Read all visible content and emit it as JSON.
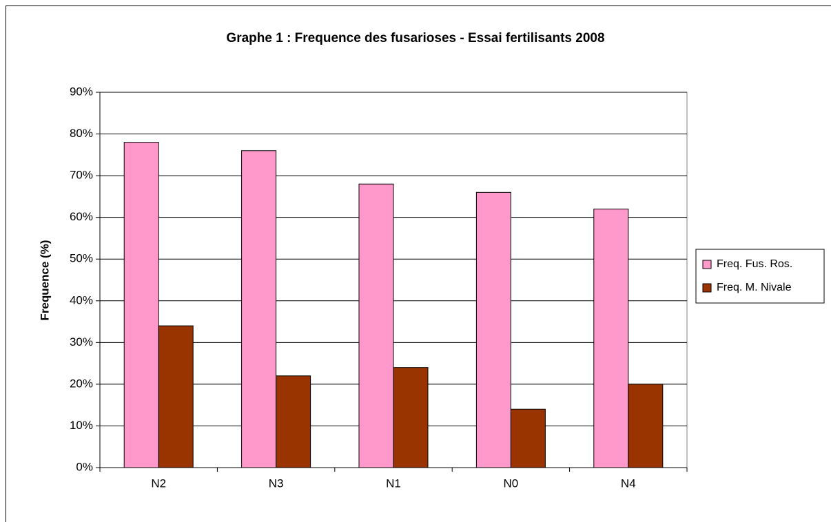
{
  "chart_data": {
    "type": "bar",
    "title": "Graphe 1 : Frequence des fusarioses - Essai fertilisants 2008",
    "y_label": "Frequence (%)",
    "categories": [
      "N2",
      "N3",
      "N1",
      "N0",
      "N4"
    ],
    "series": [
      {
        "name": "Freq. Fus. Ros.",
        "color": "#ff99cc",
        "values": [
          78,
          76,
          68,
          66,
          62
        ]
      },
      {
        "name": "Freq. M. Nivale",
        "color": "#993300",
        "values": [
          34,
          22,
          24,
          14,
          20
        ]
      }
    ],
    "ylim": [
      0,
      90
    ],
    "yticks": [
      {
        "value": 0,
        "label": "0%"
      },
      {
        "value": 10,
        "label": "10%"
      },
      {
        "value": 20,
        "label": "20%"
      },
      {
        "value": 30,
        "label": "30%"
      },
      {
        "value": 40,
        "label": "40%"
      },
      {
        "value": 50,
        "label": "50%"
      },
      {
        "value": 60,
        "label": "60%"
      },
      {
        "value": 70,
        "label": "70%"
      },
      {
        "value": 80,
        "label": "80%"
      },
      {
        "value": 90,
        "label": "90%"
      }
    ],
    "grid": true,
    "legend": "right"
  }
}
